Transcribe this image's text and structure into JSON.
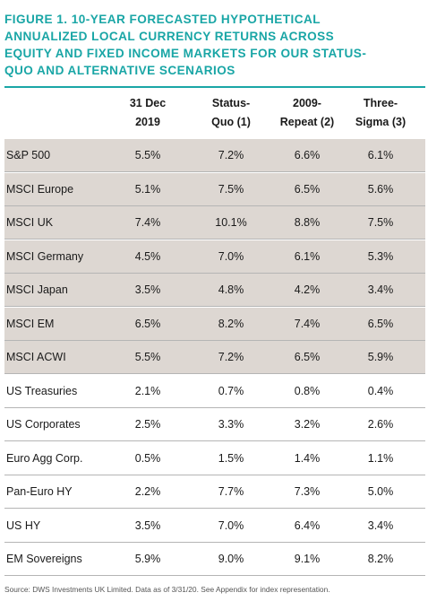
{
  "chart_data": {
    "type": "table",
    "title": "FIGURE 1. 10-YEAR FORECASTED HYPOTHETICAL ANNUALIZED LOCAL CURRENCY RETURNS ACROSS EQUITY AND FIXED INCOME MARKETS FOR OUR STATUS-QUO AND ALTERNATIVE SCENARIOS",
    "title_lines": [
      "FIGURE 1. 10-YEAR FORECASTED HYPOTHETICAL",
      "ANNUALIZED LOCAL CURRENCY RETURNS ACROSS",
      "EQUITY AND FIXED INCOME MARKETS FOR OUR STATUS-",
      "QUO AND ALTERNATIVE SCENARIOS"
    ],
    "columns": [
      "31 Dec\n2019",
      "Status-\nQuo (1)",
      "2009-\nRepeat (2)",
      "Three-\nSigma (3)"
    ],
    "rows": [
      {
        "label": "S&P 500",
        "values": [
          "5.5%",
          "7.2%",
          "6.6%",
          "6.1%"
        ],
        "group": "equity"
      },
      {
        "label": "MSCI Europe",
        "values": [
          "5.1%",
          "7.5%",
          "6.5%",
          "5.6%"
        ],
        "group": "equity"
      },
      {
        "label": "MSCI UK",
        "values": [
          "7.4%",
          "10.1%",
          "8.8%",
          "7.5%"
        ],
        "group": "equity"
      },
      {
        "label": "MSCI Germany",
        "values": [
          "4.5%",
          "7.0%",
          "6.1%",
          "5.3%"
        ],
        "group": "equity"
      },
      {
        "label": "MSCI Japan",
        "values": [
          "3.5%",
          "4.8%",
          "4.2%",
          "3.4%"
        ],
        "group": "equity"
      },
      {
        "label": "MSCI EM",
        "values": [
          "6.5%",
          "8.2%",
          "7.4%",
          "6.5%"
        ],
        "group": "equity"
      },
      {
        "label": "MSCI ACWI",
        "values": [
          "5.5%",
          "7.2%",
          "6.5%",
          "5.9%"
        ],
        "group": "equity"
      },
      {
        "label": "US Treasuries",
        "values": [
          "2.1%",
          "0.7%",
          "0.8%",
          "0.4%"
        ],
        "group": "fixed_income"
      },
      {
        "label": "US Corporates",
        "values": [
          "2.5%",
          "3.3%",
          "3.2%",
          "2.6%"
        ],
        "group": "fixed_income"
      },
      {
        "label": "Euro Agg Corp.",
        "values": [
          "0.5%",
          "1.5%",
          "1.4%",
          "1.1%"
        ],
        "group": "fixed_income"
      },
      {
        "label": "Pan-Euro HY",
        "values": [
          "2.2%",
          "7.7%",
          "7.3%",
          "5.0%"
        ],
        "group": "fixed_income"
      },
      {
        "label": "US HY",
        "values": [
          "3.5%",
          "7.0%",
          "6.4%",
          "3.4%"
        ],
        "group": "fixed_income"
      },
      {
        "label": "EM Sovereigns",
        "values": [
          "5.9%",
          "9.0%",
          "9.1%",
          "8.2%"
        ],
        "group": "fixed_income"
      }
    ],
    "source": "Source: DWS Investments UK Limited. Data as of 3/31/20. See Appendix for index representation.",
    "colors": {
      "title": "#1aa6a6",
      "equity_row": "#ddd7d2",
      "fixed_income_row": "#ffffff"
    }
  }
}
